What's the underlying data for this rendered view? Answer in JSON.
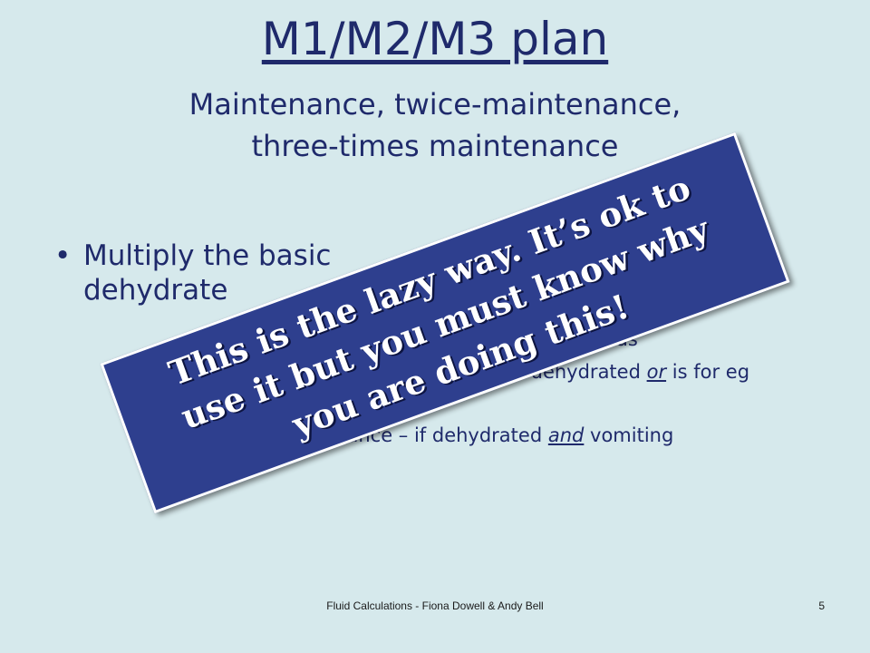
{
  "slide": {
    "title": "M1/M2/M3 plan",
    "subtitle_line1": "Maintenance, twice-maintenance,",
    "subtitle_line2": "three-times maintenance",
    "bullet1_part1": "Multiply the basic",
    "bullet1_part2": "dehydrate",
    "sub_bullet1_end": "as",
    "sub_bullet2_pre": "s dehydrated ",
    "sub_bullet2_or": "or",
    "sub_bullet2_post": " is for eg",
    "sub_bullet3_pre": "tenance – if dehydrated ",
    "sub_bullet3_and": "and",
    "sub_bullet3_post": " vomiting"
  },
  "banner": {
    "line1": "This is the lazy way.  It’s ok to",
    "line2": "use it but you must know why",
    "line3": "you are doing this!"
  },
  "footer": {
    "text": "Fluid Calculations - Fiona Dowell & Andy Bell",
    "page_number": "5"
  }
}
